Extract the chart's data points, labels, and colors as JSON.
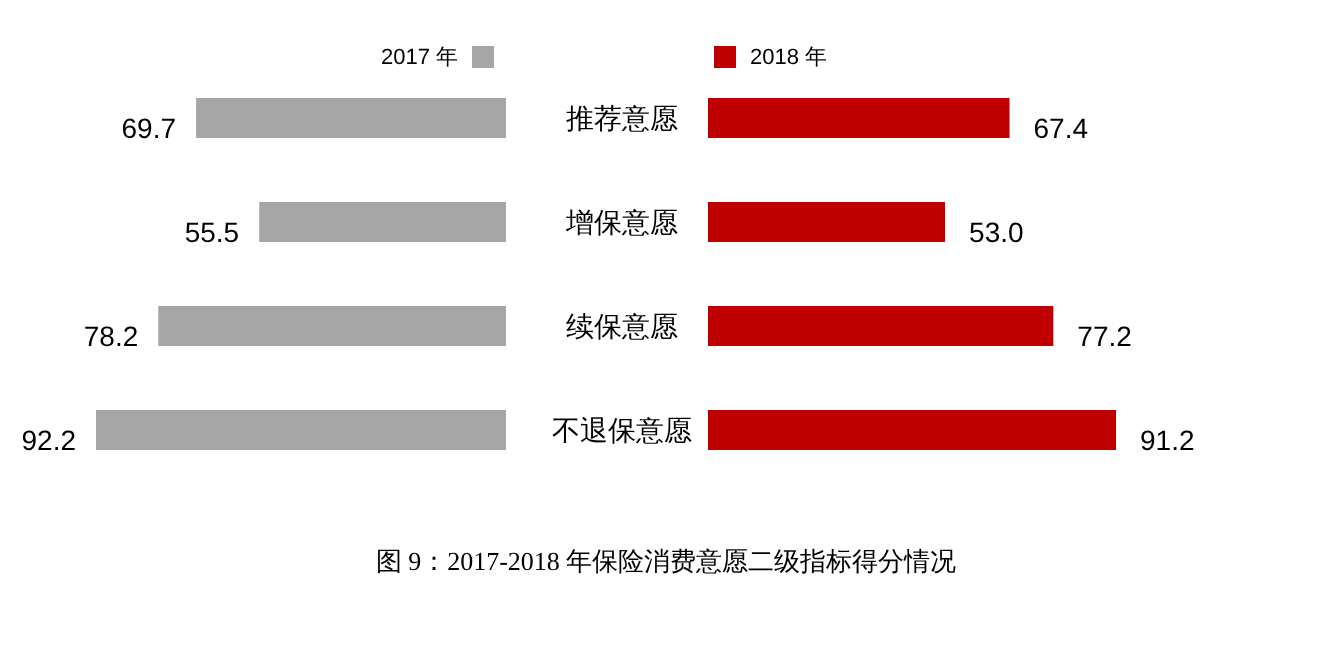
{
  "chart_data": [
    {
      "type": "bar",
      "orientation": "horizontal",
      "categories": [
        "推荐意愿",
        "增保意愿",
        "续保意愿",
        "不退保意愿"
      ],
      "series": [
        {
          "name": "2017 年",
          "color": "#a6a6a6",
          "values": [
            69.7,
            55.5,
            78.2,
            92.2
          ],
          "value_labels": [
            "69.7",
            "55.5",
            "78.2",
            "92.2"
          ]
        }
      ],
      "legend": "top right",
      "annotations": [
        "图 9：2017-2018 年保险消费意愿二级指标得分情况"
      ]
    },
    {
      "type": "bar",
      "orientation": "horizontal",
      "categories": [
        null,
        null,
        null,
        null
      ],
      "series": [
        {
          "name": "2018 年",
          "color": "#c00000",
          "values": [
            67.4,
            53.0,
            77.2,
            91.2
          ],
          "value_labels": [
            "67.4",
            "53.0",
            "77.2",
            "91.2"
          ]
        }
      ],
      "legend": "top left"
    }
  ]
}
